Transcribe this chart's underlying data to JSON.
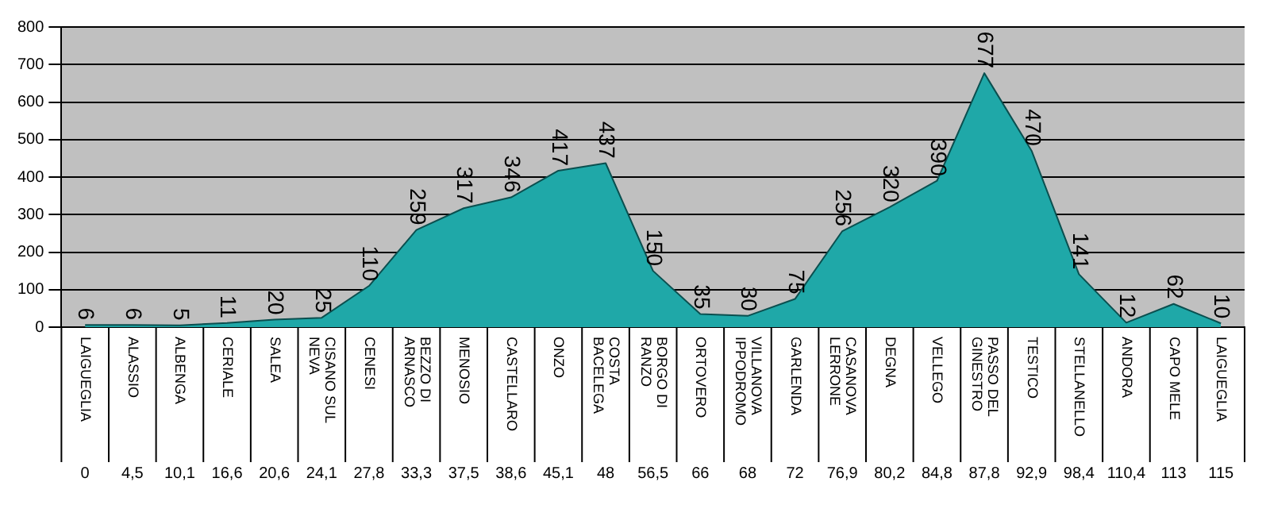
{
  "chart_data": {
    "type": "area",
    "categories": [
      "LAIGUEGLIA",
      "ALASSIO",
      "ALBENGA",
      "CERIALE",
      "SALEA",
      "CISANO SUL NEVA",
      "CENESI",
      "BEZZO DI ARNASCO",
      "MENOSIO",
      "CASTELLARO",
      "ONZO",
      "COSTA BACELEGA",
      "BORGO DI RANZO",
      "ORTOVERO",
      "VILLANOVA IPPODROMO",
      "GARLENDA",
      "CASANOVA LERRONE",
      "DEGNA",
      "VELLEGO",
      "PASSO DEL GINESTRO",
      "TESTICO",
      "STELLANELLO",
      "ANDORA",
      "CAPO MELE",
      "LAIGUEGLIA"
    ],
    "series": [
      {
        "color": "#1fa8a8",
        "values": [
          6,
          6,
          5,
          11,
          20,
          25,
          110,
          259,
          317,
          346,
          417,
          437,
          150,
          35,
          30,
          75,
          256,
          320,
          390,
          677,
          470,
          141,
          12,
          62,
          10
        ]
      }
    ],
    "annotations": [
      "0",
      "4,5",
      "10,1",
      "16,6",
      "20,6",
      "24,1",
      "27,8",
      "33,3",
      "37,5",
      "38,6",
      "45,1",
      "48",
      "56,5",
      "66",
      "68",
      "72",
      "76,9",
      "80,2",
      "84,8",
      "87,8",
      "92,9",
      "98,4",
      "110,4",
      "113",
      "115"
    ],
    "ylim": [
      0,
      800
    ],
    "yticks": [
      0,
      100,
      200,
      300,
      400,
      500,
      600,
      700,
      800
    ],
    "grid": "y",
    "legend": false,
    "data_labels": true
  }
}
